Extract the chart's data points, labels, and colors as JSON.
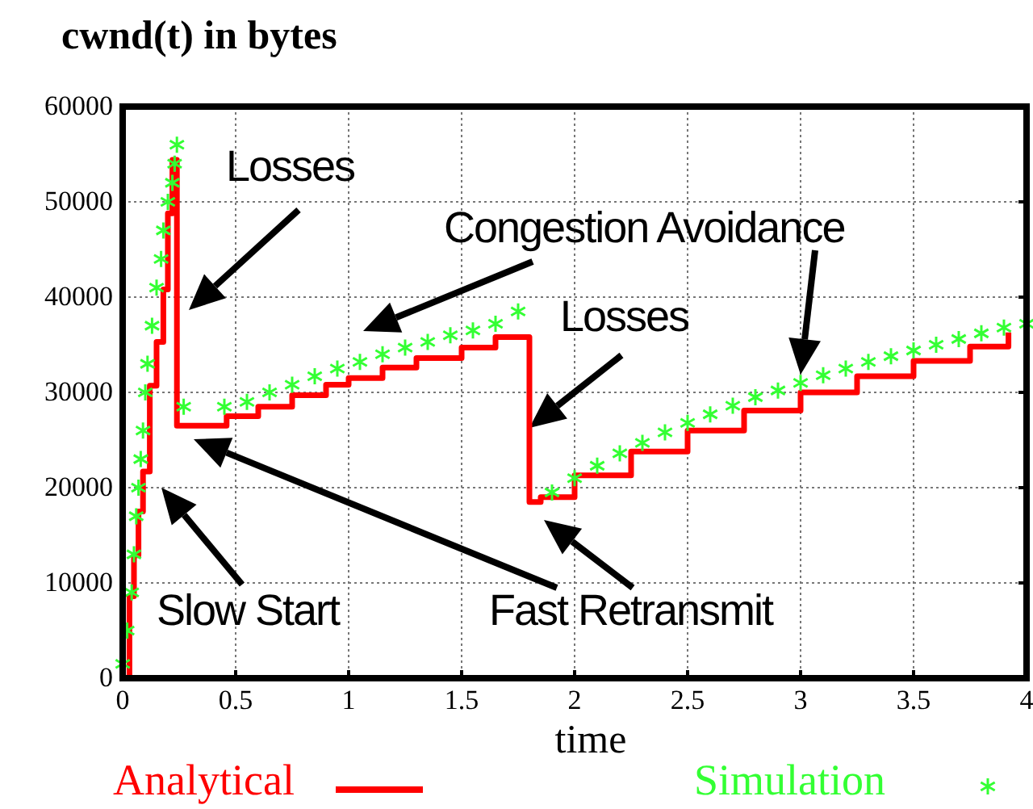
{
  "chart_data": {
    "type": "step",
    "ylabel": "cwnd(t) in bytes",
    "xlabel": "time",
    "xlim": [
      0,
      4
    ],
    "xticks": [
      0,
      0.5,
      1,
      1.5,
      2,
      2.5,
      3,
      3.5,
      4
    ],
    "ylim": [
      0,
      60000
    ],
    "yticks": [
      0,
      10000,
      20000,
      30000,
      40000,
      50000,
      60000
    ],
    "grid": true,
    "legend": "bottom",
    "series": [
      {
        "name": "Analytical",
        "color": "#ff0000",
        "line_style": "solid",
        "marker": "none",
        "x": [
          0,
          0.03,
          0.05,
          0.07,
          0.09,
          0.12,
          0.15,
          0.18,
          0.2,
          0.22,
          0.24,
          0.46,
          0.6,
          0.75,
          0.9,
          1.0,
          1.15,
          1.3,
          1.5,
          1.65,
          1.8,
          1.85,
          2.0,
          2.25,
          2.5,
          2.75,
          3.0,
          3.25,
          3.5,
          3.75,
          3.92
        ],
        "values": [
          0,
          8600,
          12900,
          17500,
          21700,
          30700,
          35300,
          40800,
          48800,
          54400,
          26500,
          27500,
          28500,
          29700,
          30800,
          31500,
          32600,
          33600,
          34700,
          35800,
          18500,
          19000,
          21300,
          23800,
          26000,
          28100,
          30000,
          31700,
          33300,
          34800,
          36300
        ]
      },
      {
        "name": "Simulation",
        "type": "scatter",
        "color": "#33ff33",
        "marker": "cross",
        "x": [
          0,
          0.02,
          0.04,
          0.05,
          0.06,
          0.07,
          0.08,
          0.09,
          0.1,
          0.11,
          0.13,
          0.15,
          0.17,
          0.18,
          0.2,
          0.22,
          0.23,
          0.24,
          0.27,
          0.45,
          0.55,
          0.65,
          0.75,
          0.85,
          0.95,
          1.05,
          1.15,
          1.25,
          1.35,
          1.45,
          1.55,
          1.65,
          1.75,
          1.9,
          2.0,
          2.1,
          2.2,
          2.3,
          2.4,
          2.5,
          2.6,
          2.7,
          2.8,
          2.9,
          3.0,
          3.1,
          3.2,
          3.3,
          3.4,
          3.5,
          3.6,
          3.7,
          3.8,
          3.9,
          4.0
        ],
        "values": [
          1500,
          5000,
          9000,
          13000,
          17000,
          20000,
          23000,
          26000,
          30000,
          33000,
          37000,
          41000,
          44000,
          47000,
          50000,
          52000,
          54000,
          56000,
          28500,
          28500,
          29000,
          30000,
          30800,
          31700,
          32500,
          33200,
          34000,
          34700,
          35300,
          36000,
          36500,
          37200,
          38500,
          19500,
          21000,
          22300,
          23600,
          24700,
          25800,
          26800,
          27700,
          28600,
          29500,
          30200,
          31000,
          31800,
          32500,
          33200,
          33800,
          34400,
          35000,
          35600,
          36200,
          36800,
          37200
        ]
      }
    ],
    "annotations": [
      "Losses",
      "Congestion Avoidance",
      "Losses",
      "Slow Start",
      "Fast Retransmit"
    ]
  }
}
